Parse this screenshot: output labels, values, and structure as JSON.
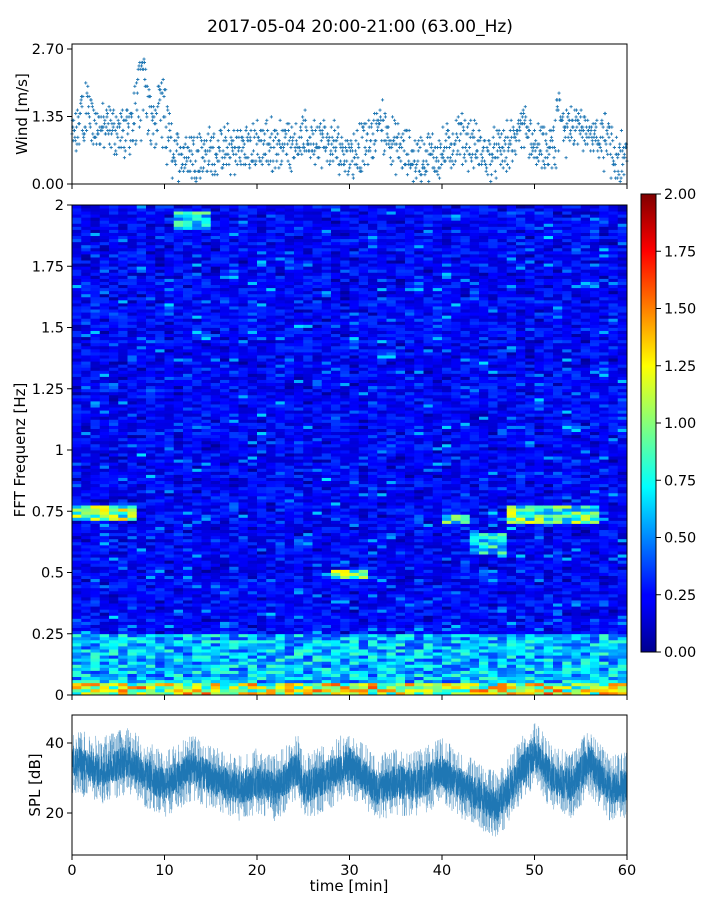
{
  "title": "2017-05-04 20:00-21:00 (63.00_Hz)",
  "chart_data": [
    {
      "id": "wind",
      "type": "scatter",
      "ylabel": "Wind [m/s]",
      "xlim": [
        0,
        60
      ],
      "ylim": [
        0,
        2.8
      ],
      "yticks": [
        0,
        1.35,
        2.7
      ],
      "ytick_labels": [
        "0.00",
        "1.35",
        "2.70"
      ],
      "marker": "+",
      "color": "#1f77b4",
      "sample_step": 0.045,
      "profile_x": [
        0,
        2,
        4,
        6,
        7.5,
        9,
        10,
        11,
        14,
        18,
        22,
        24,
        26,
        28,
        30,
        32,
        33.5,
        35,
        37,
        40,
        42,
        45,
        47,
        49,
        50,
        52,
        54,
        55.5,
        57,
        60
      ],
      "profile_y": [
        0.95,
        1.15,
        1.1,
        1.0,
        1.25,
        1.1,
        0.9,
        0.6,
        0.6,
        0.7,
        0.8,
        0.85,
        0.9,
        0.75,
        0.6,
        0.8,
        1.05,
        0.75,
        0.5,
        0.6,
        0.95,
        0.55,
        0.7,
        0.95,
        0.7,
        0.6,
        1.05,
        1.25,
        0.7,
        0.55
      ],
      "peaks": [
        {
          "x": 1.5,
          "y": 2.3
        },
        {
          "x": 7.6,
          "y": 2.7
        },
        {
          "x": 9.7,
          "y": 2.35
        },
        {
          "x": 33.5,
          "y": 1.75
        },
        {
          "x": 48.8,
          "y": 1.75
        },
        {
          "x": 52.5,
          "y": 1.95
        },
        {
          "x": 57.6,
          "y": 1.65
        }
      ]
    },
    {
      "id": "spectrogram",
      "type": "heatmap",
      "ylabel": "FFT Frequenz [Hz]",
      "xlim": [
        0,
        60
      ],
      "ylim": [
        0,
        2
      ],
      "yticks": [
        0,
        0.25,
        0.5,
        0.75,
        1,
        1.25,
        1.5,
        1.75,
        2
      ],
      "ytick_labels": [
        "0",
        "0.25",
        "0.5",
        "0.75",
        "1",
        "1.25",
        "1.5",
        "1.75",
        "2"
      ],
      "n_time_bins": 60,
      "n_freq_bins": 160,
      "colormap": "jet",
      "colorbar": {
        "vmin": 0,
        "vmax": 2,
        "ticks": [
          "0.00",
          "0.25",
          "0.50",
          "0.75",
          "1.00",
          "1.25",
          "1.50",
          "1.75",
          "2.00"
        ]
      },
      "base_level": 0.25,
      "features": [
        {
          "t0": 0,
          "t1": 7,
          "f0": 0.71,
          "f1": 0.78,
          "level": 1.2
        },
        {
          "t0": 11,
          "t1": 14.5,
          "f0": 1.9,
          "f1": 1.97,
          "level": 0.85
        },
        {
          "t0": 28,
          "t1": 32,
          "f0": 0.47,
          "f1": 0.51,
          "level": 1.15
        },
        {
          "t0": 40,
          "t1": 43,
          "f0": 0.7,
          "f1": 0.74,
          "level": 1.0
        },
        {
          "t0": 47,
          "t1": 57,
          "f0": 0.7,
          "f1": 0.78,
          "level": 1.05
        },
        {
          "t0": 43,
          "t1": 47,
          "f0": 0.58,
          "f1": 0.66,
          "level": 0.85
        },
        {
          "t0": 0,
          "t1": 60,
          "f0": 0,
          "f1": 0.25,
          "level": 0.75
        },
        {
          "t0": 0,
          "t1": 60,
          "f0": 0,
          "f1": 0.05,
          "level": 1.35
        }
      ]
    },
    {
      "id": "spl",
      "type": "line",
      "ylabel": "SPL [dB]",
      "xlabel": "time [min]",
      "xlim": [
        0,
        60
      ],
      "ylim": [
        8,
        48
      ],
      "xticks": [
        0,
        10,
        20,
        30,
        40,
        50,
        60
      ],
      "xtick_labels": [
        "0",
        "10",
        "20",
        "30",
        "40",
        "50",
        "60"
      ],
      "yticks": [
        20,
        40
      ],
      "ytick_labels": [
        "20",
        "40"
      ],
      "color": "#1f77b4",
      "trend_x": [
        0,
        3,
        6,
        8,
        10,
        13,
        15,
        18,
        20,
        22,
        24.5,
        25,
        28,
        30,
        33,
        35,
        37,
        40,
        42,
        44,
        46,
        48,
        50,
        52,
        54,
        56,
        58,
        60
      ],
      "trend_y": [
        35,
        32,
        35,
        31,
        28,
        33,
        30,
        27,
        29,
        27,
        33,
        27,
        31,
        34,
        27,
        29,
        28,
        32,
        28,
        25,
        22,
        30,
        37,
        30,
        28,
        35,
        27,
        28
      ],
      "spread": 6
    }
  ]
}
